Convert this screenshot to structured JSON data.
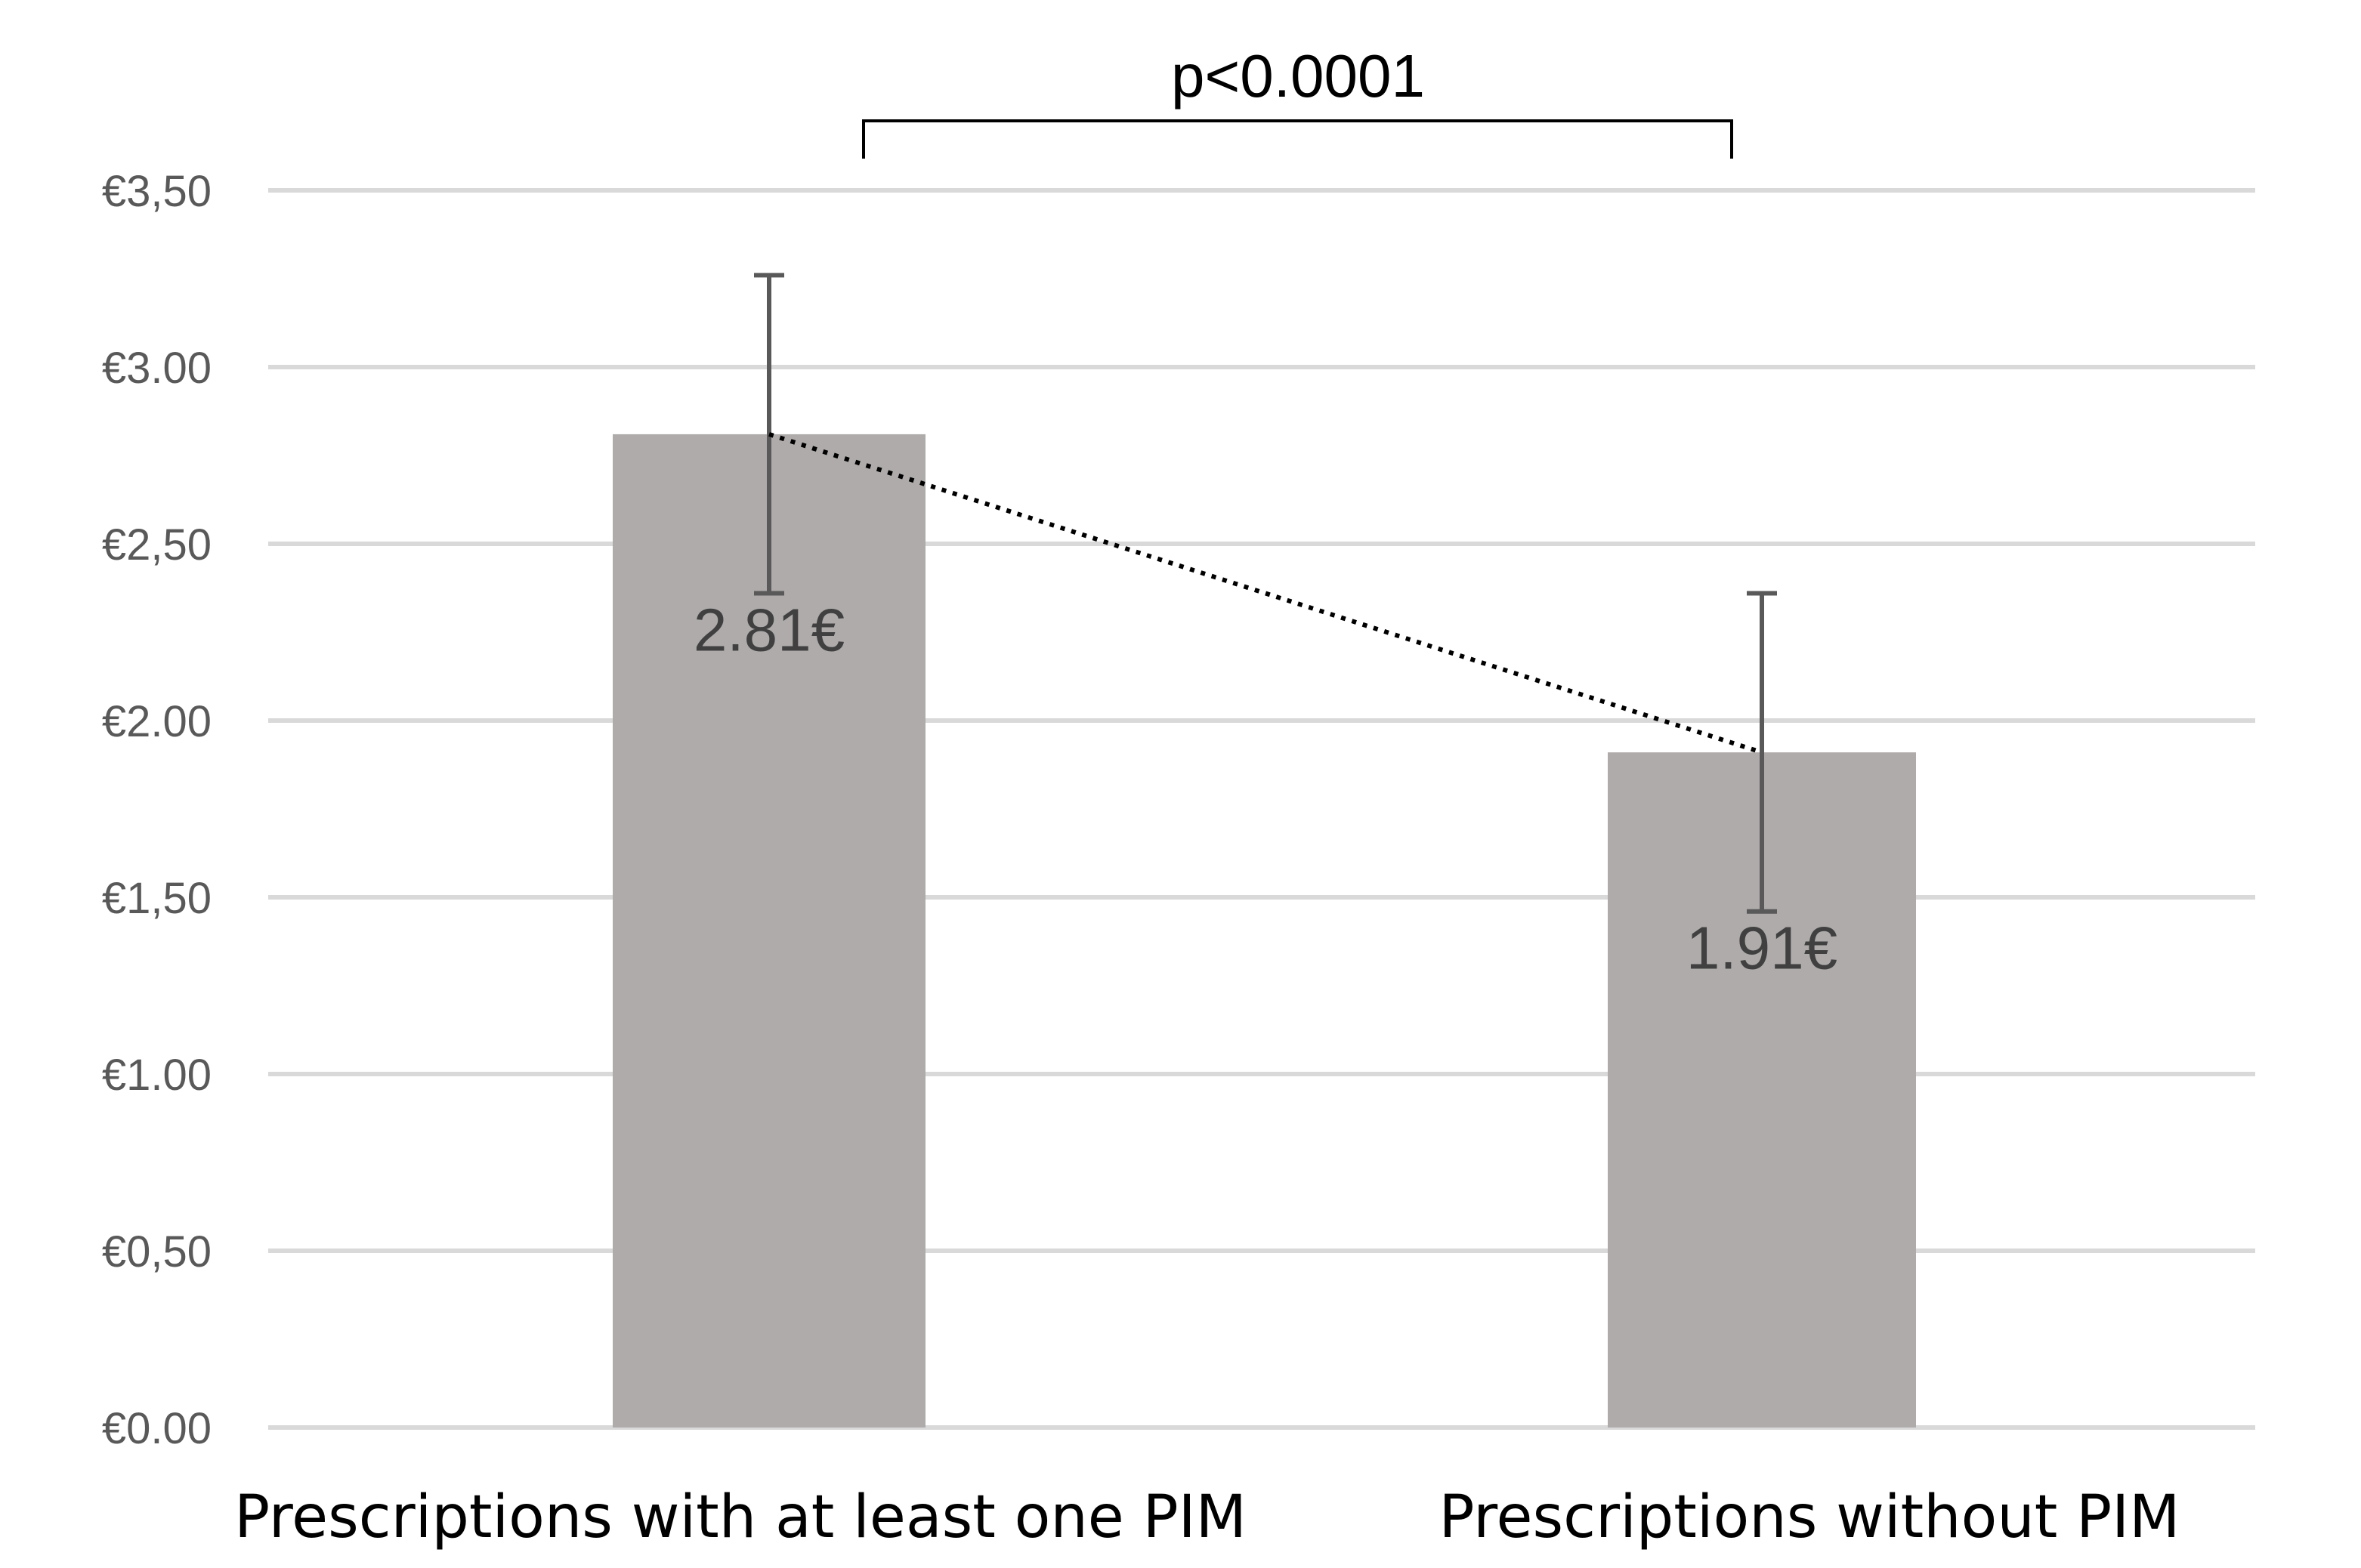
{
  "chart_data": {
    "type": "bar",
    "title": "",
    "xlabel": "",
    "ylabel": "",
    "categories": [
      "Prescriptions  with at least one PIM",
      "Prescriptions without PIM"
    ],
    "values": [
      2.81,
      1.91
    ],
    "data_labels": [
      "2.81€",
      "1.91€"
    ],
    "error_bars": [
      {
        "low": 2.36,
        "high": 3.26
      },
      {
        "low": 1.46,
        "high": 2.36
      }
    ],
    "ylim": [
      0,
      3.5
    ],
    "yticks": [
      0,
      0.5,
      1.0,
      1.5,
      2.0,
      2.5,
      3.0,
      3.5
    ],
    "ytick_labels": [
      "€0.00",
      "€0,50",
      "€1.00",
      "€1,50",
      "€2.00",
      "€2,50",
      "€3.00",
      "€3,50"
    ],
    "grid": true,
    "legend": "none",
    "trendline": "dotted line connecting bar tops",
    "significance": {
      "label": "p<0.0001",
      "between": [
        0,
        1
      ]
    },
    "colors": {
      "bar": "#afabab",
      "error_bar": "#595959",
      "gridline": "#d9d9d9",
      "trendline": "#000000"
    }
  }
}
